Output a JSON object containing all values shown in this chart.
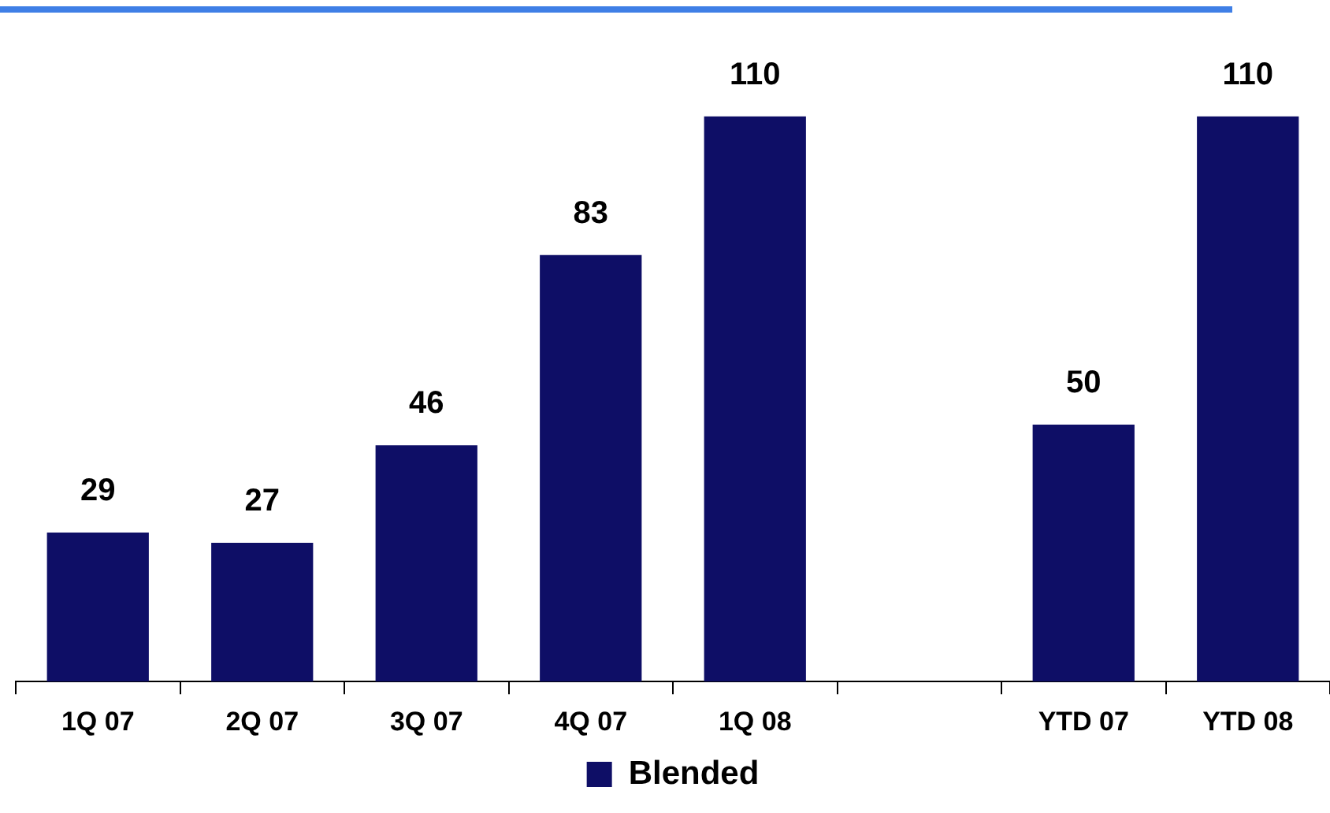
{
  "chart_data": {
    "type": "bar",
    "categories": [
      "1Q 07",
      "2Q 07",
      "3Q 07",
      "4Q 07",
      "1Q 08",
      null,
      "YTD 07",
      "YTD 08"
    ],
    "series": [
      {
        "name": "Blended",
        "color": "#0e0e66",
        "values": [
          29,
          27,
          46,
          83,
          110,
          null,
          50,
          110
        ]
      }
    ],
    "data_labels": true,
    "legend": "bottom",
    "grid": false
  }
}
